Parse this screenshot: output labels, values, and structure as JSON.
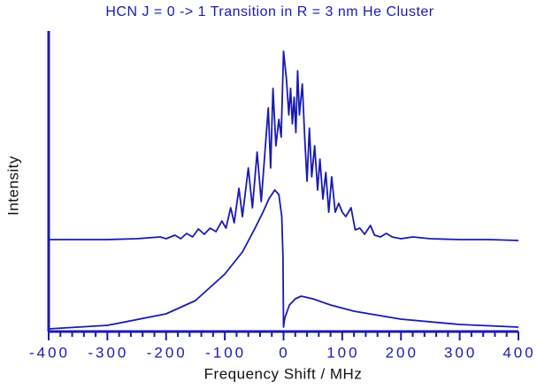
{
  "chart_data": {
    "type": "line",
    "title": "HCN J = 0 -> 1 Transition in R = 3 nm He Cluster",
    "x_label": "Frequency Shift / MHz",
    "y_label": "Intensity",
    "xlim": [
      -400,
      400
    ],
    "ylim": [
      0,
      340
    ],
    "xticks": [
      -400,
      -300,
      -200,
      -100,
      0,
      100,
      200,
      300,
      400
    ],
    "xminorticks": [
      -380,
      -360,
      -340,
      -320,
      -280,
      -260,
      -240,
      -220,
      -180,
      -160,
      -140,
      -120,
      -80,
      -60,
      -40,
      -20,
      20,
      40,
      60,
      80,
      120,
      140,
      160,
      180,
      220,
      240,
      260,
      280,
      320,
      340,
      360,
      380
    ],
    "color": "#1a1ab4",
    "series": [
      {
        "color": "#1a1ab4",
        "x": [
          -400,
          -350,
          -300,
          -250,
          -210,
          -200,
          -185,
          -175,
          -165,
          -155,
          -145,
          -135,
          -125,
          -115,
          -105,
          -98,
          -90,
          -84,
          -76,
          -70,
          -60,
          -53,
          -45,
          -38,
          -26,
          -22,
          -18,
          -13,
          -8,
          -4,
          0,
          5,
          9,
          12,
          15,
          18,
          21,
          24,
          27,
          32,
          36,
          40,
          44,
          48,
          53,
          58,
          62,
          67,
          72,
          77,
          82,
          88,
          94,
          100,
          106,
          115,
          122,
          130,
          138,
          148,
          155,
          165,
          175,
          185,
          200,
          220,
          250,
          300,
          350,
          400
        ],
        "values": [
          104,
          104,
          104,
          105,
          107,
          105,
          109,
          105,
          111,
          107,
          116,
          110,
          117,
          113,
          125,
          117,
          140,
          123,
          162,
          130,
          185,
          140,
          203,
          147,
          253,
          185,
          275,
          210,
          240,
          220,
          317,
          285,
          245,
          275,
          235,
          265,
          225,
          295,
          245,
          280,
          220,
          170,
          230,
          175,
          210,
          160,
          195,
          150,
          180,
          135,
          175,
          135,
          145,
          135,
          130,
          140,
          115,
          117,
          110,
          120,
          109,
          107,
          111,
          107,
          105,
          107,
          105,
          104,
          104,
          103
        ]
      },
      {
        "color": "#1a1ab4",
        "x": [
          -400,
          -300,
          -200,
          -150,
          -100,
          -70,
          -50,
          -35,
          -25,
          -15,
          -8,
          -3,
          -1,
          0,
          2,
          10,
          20,
          30,
          50,
          80,
          120,
          200,
          300,
          400
        ],
        "values": [
          3,
          7,
          20,
          35,
          65,
          90,
          115,
          135,
          150,
          160,
          155,
          130,
          85,
          5,
          15,
          30,
          37,
          40,
          37,
          30,
          23,
          14,
          8,
          5
        ]
      }
    ]
  }
}
